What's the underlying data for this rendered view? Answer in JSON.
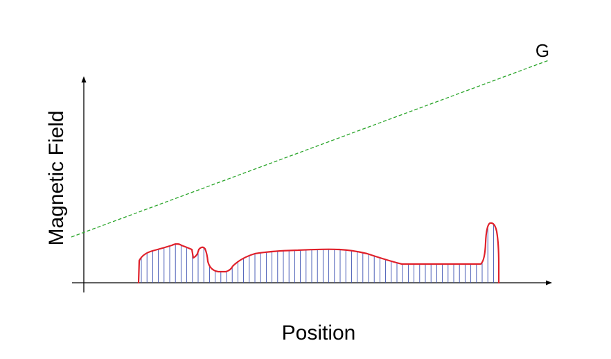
{
  "labels": {
    "gradient": "G",
    "x_axis": "Position",
    "y_axis": "Magnetic Field"
  },
  "colors": {
    "axes": "#000000",
    "gradient_line": "#2aa52a",
    "object_outline": "#e0202a",
    "hatch": "#3a4fb0",
    "background": "#ffffff"
  }
}
